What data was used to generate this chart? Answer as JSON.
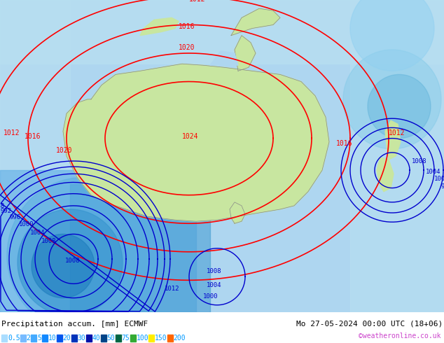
{
  "title_left": "Precipitation accum. [mm] ECMWF",
  "title_right": "Mo 27-05-2024 00:00 UTC (18+06)",
  "credit": "©weatheronline.co.uk",
  "legend_values": [
    "0.5",
    "2",
    "5",
    "10",
    "20",
    "30",
    "40",
    "50",
    "75",
    "100",
    "150",
    "200"
  ],
  "legend_colors": [
    "#b0e0ff",
    "#87ceeb",
    "#00bfff",
    "#0099ff",
    "#0055ff",
    "#00cc00",
    "#ffff00",
    "#ff9900",
    "#ff3300",
    "#cc00cc",
    "#ff00ff",
    "#ffffff"
  ],
  "precip_colors": [
    "#cceeff",
    "#b0e0ff",
    "#87ceeb",
    "#55aaff",
    "#2277ff",
    "#0044cc",
    "#003399",
    "#002266"
  ],
  "bg_color": "#d0eeff",
  "land_color": "#c8e6a0",
  "ocean_color": "#b0d8f0",
  "isobar_color": "#ff0000",
  "isobar_color_blue": "#0000cd",
  "fig_width": 6.34,
  "fig_height": 4.9,
  "dpi": 100
}
